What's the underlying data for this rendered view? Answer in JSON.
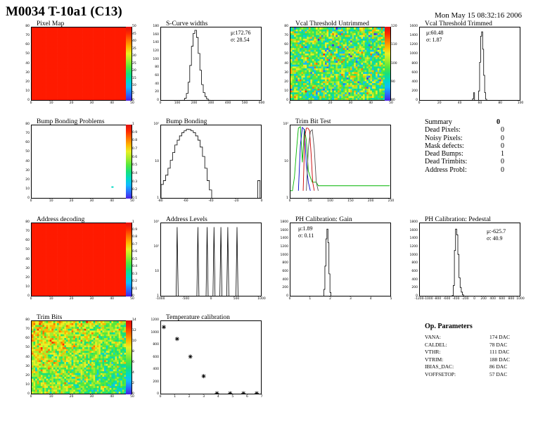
{
  "title": "M0034 T-10a1 (C13)",
  "date": "Mon May 15 08:32:16 2006",
  "palette": [
    "#4b1fe6",
    "#2b6dff",
    "#12b9ff",
    "#00d8c4",
    "#18e07a",
    "#55e83c",
    "#a5ec2d",
    "#e8ef24",
    "#ffb400",
    "#ff7000",
    "#ff2a00",
    "#e01010"
  ],
  "panels": {
    "pixel_map": {
      "title": "Pixel Map",
      "x_ticks": [
        "0",
        "10",
        "20",
        "30",
        "40",
        "50"
      ],
      "y_ticks": [
        "0",
        "10",
        "20",
        "30",
        "40",
        "50",
        "60",
        "70",
        "80"
      ],
      "z_ticks": [
        "0",
        "5",
        "10",
        "15",
        "20",
        "25",
        "30",
        "35",
        "40",
        "45",
        "50"
      ]
    },
    "scurve": {
      "title": "S-Curve widths",
      "stats": [
        "μ:172.76",
        "σ: 28.54"
      ],
      "x_ticks": [
        "0",
        "100",
        "200",
        "300",
        "400",
        "500",
        "600"
      ],
      "y_ticks": [
        "0",
        "20",
        "40",
        "60",
        "80",
        "100",
        "120",
        "140",
        "160",
        "180"
      ]
    },
    "vcal_untrimmed": {
      "title": "Vcal Threshold Untrimmed",
      "x_ticks": [
        "0",
        "10",
        "20",
        "30",
        "40",
        "50"
      ],
      "y_ticks": [
        "0",
        "10",
        "20",
        "30",
        "40",
        "50",
        "60",
        "70",
        "80"
      ],
      "z_ticks": [
        "80",
        "90",
        "100",
        "110",
        "120"
      ]
    },
    "vcal_trimmed": {
      "title": "Vcal Threshold Trimmed",
      "stats": [
        "μ:60.48",
        "σ: 1.87"
      ],
      "x_ticks": [
        "0",
        "20",
        "40",
        "60",
        "80",
        "100"
      ],
      "y_ticks": [
        "0",
        "200",
        "400",
        "600",
        "800",
        "1000",
        "1200",
        "1400",
        "1600"
      ]
    },
    "bump_problems": {
      "title": "Bump Bonding Problems",
      "x_ticks": [
        "0",
        "10",
        "20",
        "30",
        "40",
        "50"
      ],
      "y_ticks": [
        "0",
        "10",
        "20",
        "30",
        "40",
        "50",
        "60",
        "70",
        "80"
      ],
      "z_ticks": [
        "0.1",
        "0.2",
        "0.3",
        "0.4",
        "0.5",
        "0.6",
        "0.7",
        "0.8",
        "0.9",
        "1"
      ]
    },
    "bump_bonding": {
      "title": "Bump Bonding",
      "x_ticks": [
        "-80",
        "-60",
        "-40",
        "-20",
        "0"
      ],
      "y_ticks": [
        "1",
        "10",
        "10²"
      ]
    },
    "trim_bit_test": {
      "title": "Trim Bit Test",
      "x_ticks": [
        "0",
        "50",
        "100",
        "150",
        "200",
        "250"
      ],
      "y_ticks": [
        "1",
        "10",
        "10²"
      ]
    },
    "address_decoding": {
      "title": "Address decoding",
      "x_ticks": [
        "0",
        "10",
        "20",
        "30",
        "40",
        "50"
      ],
      "y_ticks": [
        "0",
        "10",
        "20",
        "30",
        "40",
        "50",
        "60",
        "70",
        "80"
      ],
      "z_ticks": [
        "0",
        "0.1",
        "0.2",
        "0.3",
        "0.4",
        "0.5",
        "0.6",
        "0.7",
        "0.8",
        "0.9",
        "1"
      ]
    },
    "address_levels": {
      "title": "Address Levels",
      "x_ticks": [
        "-1000",
        "-500",
        "0",
        "500",
        "1000"
      ],
      "y_ticks": [
        "1",
        "10",
        "10²",
        "10³"
      ]
    },
    "ph_gain": {
      "title": "PH Calibration: Gain",
      "stats": [
        "μ:1.89",
        "σ: 0.11"
      ],
      "x_ticks": [
        "0",
        "1",
        "2",
        "3",
        "4",
        "5"
      ],
      "y_ticks": [
        "0",
        "200",
        "400",
        "600",
        "800",
        "1000",
        "1200",
        "1400",
        "1600",
        "1800"
      ]
    },
    "ph_pedestal": {
      "title": "PH Calibration: Pedestal",
      "stats": [
        "μ:-625.7",
        "σ: 40.9"
      ],
      "x_ticks": [
        "-1200",
        "-1000",
        "-800",
        "-600",
        "-400",
        "-200",
        "0",
        "200",
        "400",
        "600",
        "800",
        "1000"
      ],
      "y_ticks": [
        "0",
        "200",
        "400",
        "600",
        "800",
        "1000",
        "1200",
        "1400",
        "1600",
        "1800"
      ]
    },
    "trim_bits": {
      "title": "Trim Bits",
      "x_ticks": [
        "0",
        "10",
        "20",
        "30",
        "40",
        "50"
      ],
      "y_ticks": [
        "0",
        "10",
        "20",
        "30",
        "40",
        "50",
        "60",
        "70",
        "80"
      ],
      "z_ticks": [
        "0",
        "2",
        "4",
        "6",
        "8",
        "10",
        "12",
        "14"
      ]
    },
    "temp_cal": {
      "title": "Temperature calibration",
      "x_ticks": [
        "0",
        "1",
        "2",
        "3",
        "4",
        "5",
        "6",
        "7"
      ],
      "y_ticks": [
        "0",
        "200",
        "400",
        "600",
        "800",
        "1000",
        "1200"
      ]
    }
  },
  "chart_data": [
    {
      "type": "heatmap",
      "title": "Pixel Map",
      "xlim": [
        0,
        52
      ],
      "ylim": [
        0,
        80
      ],
      "zlim": [
        0,
        50
      ],
      "uniform_value": 50
    },
    {
      "type": "bar",
      "title": "S-Curve widths",
      "x_start": 0,
      "bin_width": 10,
      "xlim": [
        0,
        600
      ],
      "ylim": [
        0,
        185
      ],
      "values": [
        0,
        0,
        0,
        0,
        0,
        0,
        0,
        0,
        0,
        0,
        0,
        0,
        1,
        3,
        8,
        20,
        48,
        90,
        138,
        170,
        178,
        160,
        120,
        78,
        42,
        22,
        12,
        6,
        3,
        2,
        1,
        0,
        0,
        0,
        0,
        0,
        0,
        0,
        0,
        0,
        0,
        0,
        0,
        0,
        0,
        0,
        0,
        0,
        0,
        0,
        0,
        0,
        0,
        0,
        0,
        0,
        0,
        0,
        0,
        0
      ]
    },
    {
      "type": "heatmap",
      "title": "Vcal Threshold Untrimmed",
      "xlim": [
        0,
        52
      ],
      "ylim": [
        0,
        80
      ],
      "zlim": [
        80,
        125
      ]
    },
    {
      "type": "bar",
      "title": "Vcal Threshold Trimmed",
      "x_start": 0,
      "bin_width": 1,
      "xlim": [
        0,
        100
      ],
      "ylim": [
        0,
        1700
      ],
      "values": [
        0,
        0,
        0,
        0,
        0,
        0,
        0,
        0,
        0,
        0,
        0,
        0,
        0,
        0,
        0,
        0,
        0,
        0,
        0,
        0,
        0,
        0,
        0,
        0,
        0,
        0,
        0,
        0,
        0,
        0,
        0,
        0,
        0,
        0,
        0,
        0,
        0,
        0,
        0,
        0,
        0,
        0,
        0,
        0,
        0,
        0,
        0,
        0,
        0,
        0,
        5,
        20,
        60,
        200,
        15,
        0,
        0,
        20,
        240,
        900,
        1500,
        1600,
        1200,
        600,
        200,
        50,
        10,
        2,
        0,
        0,
        0,
        0,
        0,
        0,
        0,
        0,
        0,
        0,
        0,
        0,
        0,
        0,
        0,
        0,
        0,
        0,
        0,
        0,
        0,
        0,
        0,
        0,
        0,
        0,
        0,
        0,
        0,
        0,
        0,
        0
      ]
    },
    {
      "type": "heatmap",
      "title": "Bump Bonding Problems",
      "xlim": [
        0,
        52
      ],
      "ylim": [
        0,
        80
      ],
      "zlim": [
        0,
        1
      ],
      "points": [
        {
          "x": 44,
          "y": 14,
          "z": 0.3
        }
      ]
    },
    {
      "type": "bar",
      "title": "Bump Bonding",
      "scale": "log",
      "x_start": -84,
      "bin_width": 2,
      "xlim": [
        -84,
        4
      ],
      "ylim": [
        1,
        120
      ],
      "values": [
        1.5,
        2,
        3,
        5,
        9,
        16,
        28,
        40,
        55,
        70,
        80,
        90,
        88,
        80,
        70,
        55,
        40,
        24,
        12,
        5,
        2,
        1,
        0,
        0,
        0,
        0,
        0,
        0,
        0,
        0,
        0,
        0,
        0,
        0,
        0,
        0,
        0,
        0,
        0,
        0,
        0,
        0,
        2,
        0
      ]
    },
    {
      "type": "line",
      "title": "Trim Bit Test",
      "scale": "log",
      "xlim": [
        0,
        255
      ],
      "ylim": [
        1,
        200
      ],
      "series": [
        {
          "color": "#00b400",
          "x": [
            0,
            5,
            10,
            15,
            20,
            25,
            30,
            35,
            40,
            45,
            50,
            55,
            60,
            65,
            70,
            75,
            80,
            85,
            90,
            95,
            100,
            105,
            110,
            115,
            120,
            125,
            130,
            135,
            140,
            150,
            160,
            170,
            180,
            190,
            200,
            210,
            220,
            230,
            240,
            250
          ],
          "y": [
            1,
            1,
            3,
            25,
            160,
            180,
            10,
            150,
            60,
            5,
            3,
            2,
            2,
            2,
            1.5,
            1.5,
            1.5,
            1.5,
            1.5,
            1.5,
            1.5,
            1.5,
            1.5,
            1.5,
            1.5,
            1.5,
            1.5,
            1.5,
            1.5,
            1.5,
            1.5,
            1.5,
            1.5,
            1.5,
            1.5,
            1.5,
            1.5,
            1.5,
            1.5,
            1.5
          ]
        },
        {
          "color": "#0000c8",
          "x": [
            20,
            25,
            30,
            35,
            40,
            45,
            50
          ],
          "y": [
            1,
            40,
            170,
            140,
            8,
            2,
            1
          ]
        },
        {
          "color": "#c80000",
          "x": [
            32,
            36,
            40,
            44,
            48,
            52,
            56,
            60
          ],
          "y": [
            1,
            80,
            160,
            160,
            130,
            20,
            2,
            1
          ]
        },
        {
          "color": "#555555",
          "x": [
            40,
            45,
            50,
            55,
            60,
            65,
            70
          ],
          "y": [
            1,
            30,
            120,
            140,
            30,
            2,
            1
          ]
        }
      ]
    },
    {
      "type": "table",
      "title": "Summary",
      "rows": [
        [
          "Summary",
          "0"
        ],
        [
          "Dead Pixels:",
          "0"
        ],
        [
          "Noisy Pixels:",
          "0"
        ],
        [
          "Mask defects:",
          "0"
        ],
        [
          "Dead Bumps:",
          "1"
        ],
        [
          "Dead Trimbits:",
          "0"
        ],
        [
          "Address Probl:",
          "0"
        ]
      ]
    },
    {
      "type": "heatmap",
      "title": "Address decoding",
      "xlim": [
        0,
        52
      ],
      "ylim": [
        0,
        80
      ],
      "zlim": [
        0,
        1
      ],
      "uniform_value": 1
    },
    {
      "type": "bar",
      "title": "Address Levels",
      "scale": "log",
      "xlim": [
        -1100,
        1100
      ],
      "ylim": [
        1,
        4000
      ],
      "peaks": [
        {
          "x": -750,
          "y": 2500
        },
        {
          "x": -300,
          "y": 2500
        },
        {
          "x": -100,
          "y": 2500
        },
        {
          "x": 50,
          "y": 2500
        },
        {
          "x": 200,
          "y": 2500
        },
        {
          "x": 350,
          "y": 2500
        },
        {
          "x": 550,
          "y": 2500
        }
      ]
    },
    {
      "type": "bar",
      "title": "PH Calibration: Gain",
      "x_start": 0,
      "bin_width": 0.05,
      "xlim": [
        0,
        5
      ],
      "ylim": [
        0,
        1900
      ],
      "values": [
        0,
        0,
        0,
        0,
        0,
        0,
        0,
        0,
        0,
        0,
        0,
        0,
        0,
        0,
        0,
        0,
        0,
        0,
        0,
        0,
        0,
        0,
        0,
        0,
        0,
        0,
        0,
        0,
        0,
        0,
        0,
        0,
        30,
        200,
        800,
        1500,
        1750,
        1400,
        600,
        120,
        20,
        0,
        0,
        0,
        0,
        0,
        0,
        0,
        0,
        0,
        0,
        0,
        0,
        0,
        0,
        0,
        0,
        0,
        0,
        0,
        0,
        0,
        0,
        0,
        0,
        0,
        0,
        0,
        0,
        0,
        0,
        0,
        0,
        0,
        0,
        0,
        0,
        0,
        0,
        0,
        0,
        0,
        0,
        0,
        0,
        0,
        0,
        0,
        0,
        0,
        0,
        0,
        0,
        0,
        0,
        0,
        0,
        0,
        0,
        0
      ]
    },
    {
      "type": "bar",
      "title": "PH Calibration: Pedestal",
      "x_start": -1200,
      "bin_width": 25,
      "xlim": [
        -1200,
        1000
      ],
      "ylim": [
        0,
        1900
      ],
      "values": [
        0,
        0,
        0,
        0,
        0,
        0,
        0,
        0,
        0,
        0,
        0,
        0,
        0,
        0,
        0,
        0,
        0,
        0,
        0,
        0,
        0,
        0,
        0,
        0,
        0,
        0,
        0,
        5,
        40,
        300,
        1200,
        1750,
        1600,
        1100,
        500,
        250,
        130,
        60,
        25,
        10,
        3,
        0,
        0,
        0,
        0,
        0,
        0,
        0,
        0,
        0,
        0,
        0,
        0,
        0,
        0,
        0,
        0,
        0,
        0,
        0,
        0,
        0,
        0,
        0,
        0,
        0,
        0,
        0,
        0,
        0,
        0,
        0,
        0,
        0,
        0,
        0,
        0,
        0,
        0,
        0,
        0,
        0,
        0,
        0,
        0,
        0,
        0,
        0
      ]
    },
    {
      "type": "heatmap",
      "title": "Trim Bits",
      "xlim": [
        0,
        52
      ],
      "ylim": [
        0,
        80
      ],
      "zlim": [
        0,
        15
      ]
    },
    {
      "type": "scatter",
      "title": "Temperature calibration",
      "xlim": [
        0,
        7
      ],
      "ylim": [
        0,
        1250
      ],
      "x": [
        0,
        1,
        2,
        3,
        4,
        5,
        6,
        7
      ],
      "y": [
        1150,
        950,
        650,
        320,
        30,
        30,
        30,
        30
      ]
    }
  ],
  "summary": {
    "rows": [
      {
        "label": "Summary",
        "value": "0"
      },
      {
        "label": "Dead Pixels:",
        "value": "0"
      },
      {
        "label": "Noisy Pixels:",
        "value": "0"
      },
      {
        "label": "Mask defects:",
        "value": "0"
      },
      {
        "label": "Dead Bumps:",
        "value": "1"
      },
      {
        "label": "Dead Trimbits:",
        "value": "0"
      },
      {
        "label": "Address Probl:",
        "value": "0"
      }
    ]
  },
  "op_params": {
    "title": "Op. Parameters",
    "rows": [
      {
        "label": "VANA:",
        "value": "174 DAC"
      },
      {
        "label": "CALDEL:",
        "value": "78 DAC"
      },
      {
        "label": "VTHR:",
        "value": "111 DAC"
      },
      {
        "label": "VTRIM:",
        "value": "188 DAC"
      },
      {
        "label": "IBIAS_DAC:",
        "value": "86 DAC"
      },
      {
        "label": "VOFFSETOP:",
        "value": "57 DAC"
      }
    ]
  }
}
